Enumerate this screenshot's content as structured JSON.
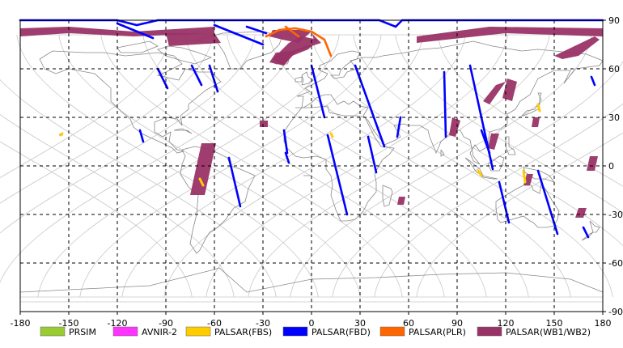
{
  "map": {
    "lon_ticks": [
      -180,
      -150,
      -120,
      -90,
      -60,
      -30,
      0,
      30,
      60,
      90,
      120,
      150,
      180
    ],
    "lat_ticks": [
      90,
      60,
      30,
      0,
      -30,
      -60,
      -90
    ],
    "lon_range": [
      -180,
      180
    ],
    "lat_range": [
      -90,
      90
    ],
    "grid": "dashed, every 30 degrees",
    "colors": {
      "land_outline": "#888888",
      "orbit_track": "#c8c8c8",
      "grid": "#000000"
    }
  },
  "legend": [
    {
      "label": "PRSIM",
      "color": "#99cc33"
    },
    {
      "label": "AVNIR-2",
      "color": "#ff33ff"
    },
    {
      "label": "PALSAR(FBS)",
      "color": "#ffcc00"
    },
    {
      "label": "PALSAR(FBD)",
      "color": "#0000ff"
    },
    {
      "label": "PALSAR(PLR)",
      "color": "#ff6600"
    },
    {
      "label": "PALSAR(WB1/WB2)",
      "color": "#993366"
    }
  ],
  "observations": [
    {
      "mode": "PALSAR(FBD)",
      "path": [
        [
          -74,
          62
        ],
        [
          -68,
          50
        ]
      ]
    },
    {
      "mode": "PALSAR(FBD)",
      "path": [
        [
          -95,
          60
        ],
        [
          -89,
          48
        ]
      ]
    },
    {
      "mode": "PALSAR(FBD)",
      "path": [
        [
          -63,
          62
        ],
        [
          -58,
          46
        ]
      ]
    },
    {
      "mode": "PALSAR(FBD)",
      "path": [
        [
          -106,
          22
        ],
        [
          -104,
          15
        ]
      ]
    },
    {
      "mode": "PALSAR(FBD)",
      "path": [
        [
          -51,
          5
        ],
        [
          -44,
          -25
        ]
      ]
    },
    {
      "mode": "PALSAR(FBD)",
      "path": [
        [
          -17,
          22
        ],
        [
          -15,
          8
        ]
      ]
    },
    {
      "mode": "PALSAR(FBD)",
      "path": [
        [
          -16,
          8
        ],
        [
          -14,
          2
        ]
      ]
    },
    {
      "mode": "PALSAR(FBD)",
      "path": [
        [
          0,
          62
        ],
        [
          8,
          30
        ]
      ]
    },
    {
      "mode": "PALSAR(FBD)",
      "path": [
        [
          10,
          19
        ],
        [
          22,
          -30
        ]
      ]
    },
    {
      "mode": "PALSAR(FBD)",
      "path": [
        [
          27,
          62
        ],
        [
          45,
          12
        ]
      ]
    },
    {
      "mode": "PALSAR(FBD)",
      "path": [
        [
          35,
          18
        ],
        [
          40,
          -4
        ]
      ]
    },
    {
      "mode": "PALSAR(FBD)",
      "path": [
        [
          55,
          30
        ],
        [
          53,
          18
        ]
      ]
    },
    {
      "mode": "PALSAR(FBD)",
      "path": [
        [
          98,
          62
        ],
        [
          112,
          -2
        ]
      ]
    },
    {
      "mode": "PALSAR(FBD)",
      "path": [
        [
          82,
          58
        ],
        [
          83,
          18
        ]
      ]
    },
    {
      "mode": "PALSAR(FBD)",
      "path": [
        [
          105,
          22
        ],
        [
          110,
          8
        ]
      ]
    },
    {
      "mode": "PALSAR(FBD)",
      "path": [
        [
          116,
          -10
        ],
        [
          122,
          -35
        ]
      ]
    },
    {
      "mode": "PALSAR(FBD)",
      "path": [
        [
          140,
          -3
        ],
        [
          152,
          -42
        ]
      ]
    },
    {
      "mode": "PALSAR(FBD)",
      "path": [
        [
          168,
          -38
        ],
        [
          171,
          -44
        ]
      ]
    },
    {
      "mode": "PALSAR(FBD)",
      "path": [
        [
          173,
          55
        ],
        [
          175,
          50
        ]
      ]
    },
    {
      "mode": "PALSAR(FBD)",
      "path": [
        [
          -120,
          88
        ],
        [
          -98,
          79
        ]
      ]
    },
    {
      "mode": "PALSAR(FBD)",
      "path": [
        [
          -60,
          87
        ],
        [
          -30,
          75
        ]
      ]
    },
    {
      "mode": "PALSAR(FBD)",
      "path": [
        [
          -40,
          86
        ],
        [
          -28,
          82
        ]
      ]
    },
    {
      "mode": "PALSAR(FBD)",
      "path": [
        [
          -180,
          90
        ],
        [
          -120,
          90
        ],
        [
          -108,
          87
        ],
        [
          -95,
          90
        ],
        [
          -10,
          90
        ],
        [
          42,
          90
        ],
        [
          52,
          86
        ],
        [
          56,
          90
        ],
        [
          180,
          90
        ]
      ]
    },
    {
      "mode": "PALSAR(PLR)",
      "path": [
        [
          -28,
          80
        ],
        [
          -20,
          84
        ],
        [
          -10,
          85
        ],
        [
          0,
          83
        ],
        [
          8,
          78
        ],
        [
          12,
          68
        ]
      ]
    },
    {
      "mode": "PALSAR(PLR)",
      "path": [
        [
          -16,
          86
        ],
        [
          -8,
          80
        ]
      ]
    },
    {
      "mode": "PALSAR(FBS)",
      "path": [
        [
          -154,
          20
        ],
        [
          -155,
          19
        ]
      ]
    },
    {
      "mode": "PALSAR(FBS)",
      "path": [
        [
          -69,
          -8
        ],
        [
          -67,
          -12
        ]
      ]
    },
    {
      "mode": "PALSAR(FBS)",
      "path": [
        [
          131,
          -3
        ],
        [
          132,
          -10
        ]
      ]
    },
    {
      "mode": "PALSAR(FBS)",
      "path": [
        [
          103,
          -3
        ],
        [
          105,
          -6
        ]
      ]
    },
    {
      "mode": "PALSAR(FBS)",
      "path": [
        [
          140,
          38
        ],
        [
          141,
          34
        ]
      ]
    },
    {
      "mode": "PALSAR(FBS)",
      "path": [
        [
          12,
          20
        ],
        [
          13,
          18
        ]
      ]
    }
  ],
  "wide_swaths": [
    {
      "mode": "PALSAR(WB1/WB2)",
      "poly": [
        [
          -180,
          85
        ],
        [
          -150,
          86
        ],
        [
          -110,
          83
        ],
        [
          -60,
          86
        ],
        [
          -60,
          82
        ],
        [
          -110,
          80
        ],
        [
          -150,
          82
        ],
        [
          -180,
          80
        ]
      ]
    },
    {
      "mode": "PALSAR(WB1/WB2)",
      "poly": [
        [
          -90,
          82
        ],
        [
          -60,
          82
        ],
        [
          -56,
          76
        ],
        [
          -88,
          74
        ]
      ]
    },
    {
      "mode": "PALSAR(WB1/WB2)",
      "poly": [
        [
          -26,
          80
        ],
        [
          -18,
          78
        ],
        [
          -8,
          76
        ],
        [
          0,
          83
        ],
        [
          2,
          76
        ],
        [
          -12,
          71
        ],
        [
          -22,
          70
        ],
        [
          -26,
          64
        ],
        [
          -17,
          62
        ],
        [
          -10,
          70
        ],
        [
          0,
          74
        ],
        [
          6,
          76
        ],
        [
          -2,
          84
        ],
        [
          -12,
          84
        ],
        [
          -24,
          84
        ]
      ]
    },
    {
      "mode": "PALSAR(WB1/WB2)",
      "poly": [
        [
          -24,
          66
        ],
        [
          -14,
          76
        ],
        [
          -6,
          80
        ],
        [
          4,
          78
        ],
        [
          -2,
          72
        ],
        [
          -12,
          68
        ],
        [
          -18,
          62
        ]
      ]
    },
    {
      "mode": "PALSAR(WB1/WB2)",
      "poly": [
        [
          65,
          80
        ],
        [
          110,
          86
        ],
        [
          180,
          85
        ],
        [
          180,
          80
        ],
        [
          120,
          82
        ],
        [
          65,
          76
        ]
      ]
    },
    {
      "mode": "PALSAR(WB1/WB2)",
      "poly": [
        [
          150,
          68
        ],
        [
          175,
          80
        ],
        [
          178,
          78
        ],
        [
          165,
          68
        ],
        [
          155,
          66
        ]
      ]
    },
    {
      "mode": "PALSAR(WB1/WB2)",
      "poly": [
        [
          -32,
          28
        ],
        [
          -27,
          28
        ],
        [
          -27,
          24
        ],
        [
          -32,
          24
        ]
      ]
    },
    {
      "mode": "PALSAR(WB1/WB2)",
      "poly": [
        [
          -68,
          14
        ],
        [
          -59,
          14
        ],
        [
          -66,
          -18
        ],
        [
          -75,
          -18
        ]
      ]
    },
    {
      "mode": "PALSAR(WB1/WB2)",
      "poly": [
        [
          87,
          30
        ],
        [
          92,
          28
        ],
        [
          89,
          18
        ],
        [
          85,
          19
        ]
      ]
    },
    {
      "mode": "PALSAR(WB1/WB2)",
      "poly": [
        [
          114,
          50
        ],
        [
          120,
          52
        ],
        [
          110,
          38
        ],
        [
          106,
          40
        ]
      ]
    },
    {
      "mode": "PALSAR(WB1/WB2)",
      "poly": [
        [
          121,
          54
        ],
        [
          127,
          52
        ],
        [
          124,
          40
        ],
        [
          118,
          42
        ]
      ]
    },
    {
      "mode": "PALSAR(WB1/WB2)",
      "poly": [
        [
          111,
          20
        ],
        [
          116,
          20
        ],
        [
          113,
          10
        ],
        [
          109,
          11
        ]
      ]
    },
    {
      "mode": "PALSAR(WB1/WB2)",
      "poly": [
        [
          137,
          30
        ],
        [
          141,
          30
        ],
        [
          140,
          24
        ],
        [
          136,
          24
        ]
      ]
    },
    {
      "mode": "PALSAR(WB1/WB2)",
      "poly": [
        [
          54,
          -19
        ],
        [
          58,
          -19
        ],
        [
          57,
          -24
        ],
        [
          53,
          -24
        ]
      ]
    },
    {
      "mode": "PALSAR(WB1/WB2)",
      "poly": [
        [
          133,
          -5
        ],
        [
          137,
          -5
        ],
        [
          135,
          -12
        ],
        [
          131,
          -12
        ]
      ]
    },
    {
      "mode": "PALSAR(WB1/WB2)",
      "poly": [
        [
          165,
          -26
        ],
        [
          170,
          -26
        ],
        [
          168,
          -32
        ],
        [
          163,
          -32
        ]
      ]
    },
    {
      "mode": "PALSAR(WB1/WB2)",
      "poly": [
        [
          172,
          6
        ],
        [
          177,
          6
        ],
        [
          175,
          -3
        ],
        [
          170,
          -3
        ]
      ]
    }
  ]
}
